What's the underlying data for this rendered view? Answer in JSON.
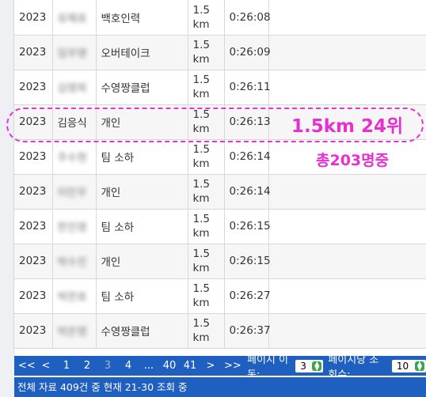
{
  "rows": [
    {
      "year": "2023",
      "name": "유해호",
      "team": "백호인력",
      "dist_num": "1.5",
      "dist_unit": "km",
      "time": "0:26:08",
      "name_blurred": true
    },
    {
      "year": "2023",
      "name": "임우영",
      "team": "오버테이크",
      "dist_num": "1.5",
      "dist_unit": "km",
      "time": "0:26:09",
      "name_blurred": true
    },
    {
      "year": "2023",
      "name": "김영희",
      "team": "수영짱클럽",
      "dist_num": "1.5",
      "dist_unit": "km",
      "time": "0:26:11",
      "name_blurred": true
    },
    {
      "year": "2023",
      "name": "김응식",
      "team": "개인",
      "dist_num": "1.5",
      "dist_unit": "km",
      "time": "0:26:13",
      "name_blurred": false
    },
    {
      "year": "2023",
      "name": "주수현",
      "team": "팀 소하",
      "dist_num": "1.5",
      "dist_unit": "km",
      "time": "0:26:14",
      "name_blurred": true
    },
    {
      "year": "2023",
      "name": "이민우",
      "team": "개인",
      "dist_num": "1.5",
      "dist_unit": "km",
      "time": "0:26:14",
      "name_blurred": true
    },
    {
      "year": "2023",
      "name": "한진영",
      "team": "팀 소하",
      "dist_num": "1.5",
      "dist_unit": "km",
      "time": "0:26:15",
      "name_blurred": true
    },
    {
      "year": "2023",
      "name": "박수진",
      "team": "개인",
      "dist_num": "1.5",
      "dist_unit": "km",
      "time": "0:26:15",
      "name_blurred": true
    },
    {
      "year": "2023",
      "name": "박찬호",
      "team": "팀 소하",
      "dist_num": "1.5",
      "dist_unit": "km",
      "time": "0:26:27",
      "name_blurred": true
    },
    {
      "year": "2023",
      "name": "박은영",
      "team": "수영짱클럽",
      "dist_num": "1.5",
      "dist_unit": "km",
      "time": "0:26:37",
      "name_blurred": true
    }
  ],
  "annotation": {
    "rank_text": "1.5km 24위",
    "total_text": "총203명중",
    "color": "#e82fd1"
  },
  "pager": {
    "first": "<<",
    "prev": "<",
    "pages": [
      "1",
      "2",
      "3",
      "4",
      "...",
      "40",
      "41"
    ],
    "current_page": "3",
    "next": ">",
    "last": ">>",
    "goto_label": "페이지 이동:",
    "goto_value": "3",
    "per_page_label": "페이지당 조회수:",
    "per_page_value": "10"
  },
  "status": {
    "text": "전체 자료 409건 중 현재 21-30 조회 중"
  },
  "colors": {
    "pager_bg": "#1f5fbf",
    "row_alt": "#f6f6f6",
    "spinner": "#3aa64a"
  },
  "icons": {
    "select_spinner": "up-down-spinner-icon"
  }
}
